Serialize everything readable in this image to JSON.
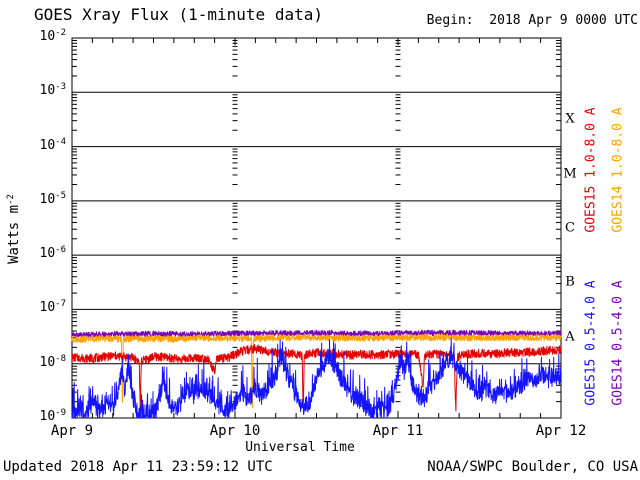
{
  "header": {
    "title": "GOES Xray Flux (1-minute data)",
    "begin_label": "Begin:  2018 Apr 9 0000 UTC"
  },
  "footer": {
    "updated": "Updated 2018 Apr 11 23:59:12 UTC",
    "source": "NOAA/SWPC Boulder, CO USA"
  },
  "chart_data": {
    "type": "line",
    "title": "GOES Xray Flux (1-minute data)",
    "subtitle": "Begin:  2018 Apr 9 0000 UTC",
    "xlabel": "Universal Time",
    "ylabel": {
      "text": "Watts m",
      "exponent": "-2"
    },
    "y_scale": "log",
    "y_tick_base": "10",
    "y_tick_exponents": [
      "-2",
      "-3",
      "-4",
      "-5",
      "-6",
      "-7",
      "-8",
      "-9"
    ],
    "ylim": [
      1e-09,
      0.01
    ],
    "x_range_hours": [
      0,
      72
    ],
    "x_tick_labels": [
      "Apr 9",
      "Apr 10",
      "Apr 11",
      "Apr 12"
    ],
    "x_day_span_hours": 24,
    "x_minor_tick_hours": 3,
    "sample_step_hours": 0.04,
    "grid": {
      "horizontal_decade_lines": true,
      "vertical_day_dash_columns": true
    },
    "flare_class_letters": [
      "X",
      "M",
      "C",
      "B",
      "A"
    ],
    "legend_position": "right-rotated",
    "legend": [
      {
        "label": "GOES15 1.0-8.0 A",
        "color": "#e60000"
      },
      {
        "label": "GOES14 1.0-8.0 A",
        "color": "#ffa200"
      },
      {
        "label": "GOES15 0.5-4.0 A",
        "color": "#1414ff"
      },
      {
        "label": "GOES14 0.5-4.0 A",
        "color": "#7700bb"
      }
    ],
    "series": [
      {
        "name": "GOES14 0.5-4.0 A",
        "color": "#7700bb",
        "seed": 21,
        "noise_log_amp": 0.05,
        "noise_profile": "band",
        "points": [
          [
            0,
            3.4e-08
          ],
          [
            6,
            3.5e-08
          ],
          [
            12,
            3.55e-08
          ],
          [
            18,
            3.5e-08
          ],
          [
            24,
            3.6e-08
          ],
          [
            30,
            3.65e-08
          ],
          [
            36,
            3.7e-08
          ],
          [
            42,
            3.6e-08
          ],
          [
            48,
            3.65e-08
          ],
          [
            54,
            3.7e-08
          ],
          [
            60,
            3.65e-08
          ],
          [
            66,
            3.6e-08
          ],
          [
            72,
            3.6e-08
          ]
        ]
      },
      {
        "name": "GOES14 1.0-8.0 A",
        "color": "#ffa200",
        "seed": 13,
        "noise_log_amp": 0.06,
        "noise_profile": "band",
        "points": [
          [
            0,
            2.8e-08
          ],
          [
            4,
            2.95e-08
          ],
          [
            7.3,
            2.85e-08
          ],
          [
            7.42,
            1.2e-09
          ],
          [
            7.55,
            2.85e-08
          ],
          [
            11,
            2.9e-08
          ],
          [
            15,
            2.85e-08
          ],
          [
            19,
            3e-08
          ],
          [
            23,
            2.9e-08
          ],
          [
            26.4,
            2.9e-08
          ],
          [
            26.55,
            1.2e-09
          ],
          [
            26.7,
            2.9e-08
          ],
          [
            30,
            3e-08
          ],
          [
            34,
            3.05e-08
          ],
          [
            38,
            3e-08
          ],
          [
            42,
            2.95e-08
          ],
          [
            46,
            3e-08
          ],
          [
            50,
            3e-08
          ],
          [
            54,
            3.05e-08
          ],
          [
            58,
            3e-08
          ],
          [
            62,
            3e-08
          ],
          [
            66,
            3.05e-08
          ],
          [
            70,
            3e-08
          ],
          [
            72,
            3e-08
          ]
        ]
      },
      {
        "name": "GOES15 1.0-8.0 A",
        "color": "#e60000",
        "seed": 7,
        "noise_log_amp": 0.08,
        "noise_profile": "band",
        "points": [
          [
            0,
            1.3e-08
          ],
          [
            3,
            1.25e-08
          ],
          [
            6,
            1.4e-08
          ],
          [
            9,
            1.3e-08
          ],
          [
            9.9,
            1.1e-08
          ],
          [
            10.05,
            1.3e-09
          ],
          [
            10.2,
            1.1e-08
          ],
          [
            12,
            1.35e-08
          ],
          [
            14,
            1.3e-08
          ],
          [
            16,
            1.2e-08
          ],
          [
            18,
            1.3e-08
          ],
          [
            20,
            1.25e-08
          ],
          [
            21,
            7e-09
          ],
          [
            21.3,
            1.2e-08
          ],
          [
            23,
            1.3e-08
          ],
          [
            25,
            1.7e-08
          ],
          [
            27,
            1.9e-08
          ],
          [
            29,
            1.7e-08
          ],
          [
            31,
            1.55e-08
          ],
          [
            33,
            1.5e-08
          ],
          [
            33.9,
            1.4e-08
          ],
          [
            34.05,
            1.2e-09
          ],
          [
            34.2,
            1.4e-08
          ],
          [
            35,
            1.55e-08
          ],
          [
            37,
            1.6e-08
          ],
          [
            39,
            1.5e-08
          ],
          [
            41,
            1.45e-08
          ],
          [
            43,
            1.5e-08
          ],
          [
            45,
            1.45e-08
          ],
          [
            47,
            1.5e-08
          ],
          [
            49,
            1.5e-08
          ],
          [
            51,
            1.45e-08
          ],
          [
            51.7,
            4e-09
          ],
          [
            51.9,
            1.4e-08
          ],
          [
            53,
            1.5e-08
          ],
          [
            55,
            1.5e-08
          ],
          [
            56.3,
            1.4e-08
          ],
          [
            56.5,
            1.3e-09
          ],
          [
            56.75,
            1.35e-08
          ],
          [
            58,
            1.5e-08
          ],
          [
            60,
            1.55e-08
          ],
          [
            62,
            1.5e-08
          ],
          [
            64,
            1.6e-08
          ],
          [
            66,
            1.6e-08
          ],
          [
            68,
            1.65e-08
          ],
          [
            70,
            1.75e-08
          ],
          [
            72,
            1.8e-08
          ]
        ]
      },
      {
        "name": "GOES15 0.5-4.0 A",
        "color": "#1414ff",
        "seed": 3,
        "noise_log_amp": 0.16,
        "noise_profile": "spiky",
        "points": [
          [
            0,
            1.2e-09
          ],
          [
            1,
            1.5e-09
          ],
          [
            2,
            1.2e-09
          ],
          [
            3,
            1.9e-09
          ],
          [
            4,
            1.3e-09
          ],
          [
            5,
            1.7e-09
          ],
          [
            6,
            1.4e-09
          ],
          [
            6.8,
            3e-09
          ],
          [
            7.3,
            8e-09
          ],
          [
            7.8,
            3e-09
          ],
          [
            8.3,
            1e-08
          ],
          [
            8.9,
            2.5e-09
          ],
          [
            9.6,
            1.3e-09
          ],
          [
            11,
            1.2e-09
          ],
          [
            12.5,
            1.4e-09
          ],
          [
            13.4,
            5e-09
          ],
          [
            14.2,
            2e-09
          ],
          [
            15.2,
            1.4e-09
          ],
          [
            16.2,
            2e-09
          ],
          [
            17,
            3.4e-09
          ],
          [
            18,
            2.4e-09
          ],
          [
            19,
            3.8e-09
          ],
          [
            20,
            2.8e-09
          ],
          [
            21,
            2e-09
          ],
          [
            22,
            1.5e-09
          ],
          [
            23,
            1.3e-09
          ],
          [
            24,
            2e-09
          ],
          [
            25,
            3e-09
          ],
          [
            26,
            2.2e-09
          ],
          [
            27,
            3.5e-09
          ],
          [
            28,
            2.5e-09
          ],
          [
            29,
            4e-09
          ],
          [
            30,
            6e-09
          ],
          [
            30.8,
            1.3e-08
          ],
          [
            31.5,
            7e-09
          ],
          [
            32.2,
            4e-09
          ],
          [
            33,
            2.5e-09
          ],
          [
            34,
            1.5e-09
          ],
          [
            35,
            2e-09
          ],
          [
            36,
            5e-09
          ],
          [
            37,
            9e-09
          ],
          [
            37.8,
            1.5e-08
          ],
          [
            38.5,
            1e-08
          ],
          [
            39.3,
            6e-09
          ],
          [
            40.2,
            4e-09
          ],
          [
            41.2,
            2.5e-09
          ],
          [
            42.2,
            2e-09
          ],
          [
            43.2,
            1.5e-09
          ],
          [
            44.2,
            1.2e-09
          ],
          [
            45.2,
            1.5e-09
          ],
          [
            46.2,
            1.2e-09
          ],
          [
            47.2,
            2.2e-09
          ],
          [
            47.9,
            6e-09
          ],
          [
            48.4,
            1.2e-08
          ],
          [
            48.9,
            7e-09
          ],
          [
            49.4,
            1.35e-08
          ],
          [
            49.9,
            5.5e-09
          ],
          [
            50.6,
            3e-09
          ],
          [
            51.6,
            2e-09
          ],
          [
            52.6,
            3.4e-09
          ],
          [
            53.6,
            5e-09
          ],
          [
            54.6,
            8e-09
          ],
          [
            55.6,
            1.3e-08
          ],
          [
            56.3,
            9e-09
          ],
          [
            57.2,
            7e-09
          ],
          [
            58.2,
            5e-09
          ],
          [
            59.2,
            3.5e-09
          ],
          [
            60.2,
            2.8e-09
          ],
          [
            61.2,
            3.4e-09
          ],
          [
            62.2,
            2.5e-09
          ],
          [
            63.2,
            3e-09
          ],
          [
            64.2,
            2.6e-09
          ],
          [
            65.2,
            3.4e-09
          ],
          [
            66.2,
            4e-09
          ],
          [
            67.2,
            5.5e-09
          ],
          [
            68.2,
            4.5e-09
          ],
          [
            69.2,
            6.5e-09
          ],
          [
            70.2,
            5e-09
          ],
          [
            71,
            5.5e-09
          ],
          [
            72,
            6e-09
          ]
        ]
      }
    ]
  }
}
